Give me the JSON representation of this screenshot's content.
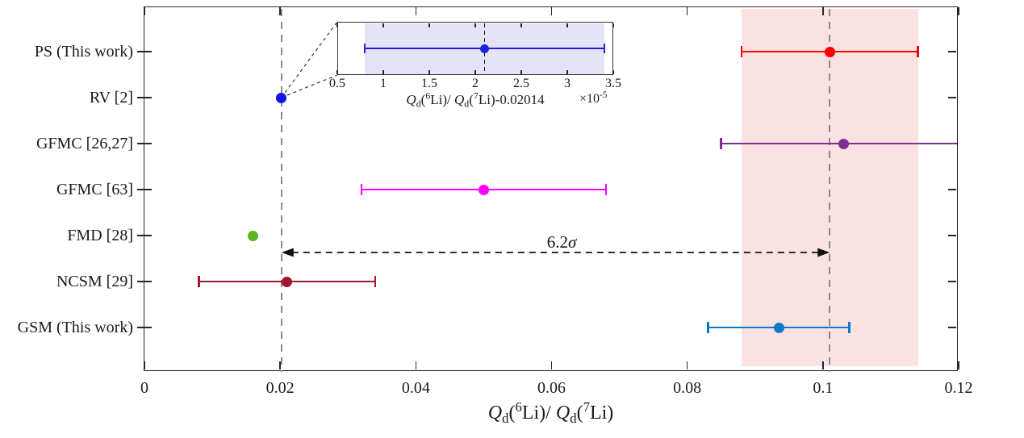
{
  "figure": {
    "background": "#FFFFFF",
    "axis_color": "#262626",
    "text_color": "#1A1A1A"
  },
  "chart_data": {
    "type": "scatter",
    "subtype": "horizontal-errorbar-comparison",
    "title": "",
    "xlabel": "Q_d(6Li)/ Q_d(7Li)",
    "ylabel": "",
    "xlim": [
      0,
      0.12
    ],
    "grid": false,
    "x_ticks": {
      "values": [
        0,
        0.02,
        0.04,
        0.06,
        0.08,
        0.1,
        0.12
      ],
      "labels": [
        "0",
        "0.02",
        "0.04",
        "0.06",
        "0.08",
        "0.1",
        "0.12"
      ]
    },
    "categories": [
      "PS (This work)",
      "RV [2]",
      "GFMC [26,27]",
      "GFMC [63]",
      "FMD [28]",
      "NCSM [29]",
      "GSM (This work)"
    ],
    "series": [
      {
        "label": "PS (This work)",
        "value": 0.101,
        "err_minus": 0.013,
        "err_plus": 0.013,
        "color": "#FF0000"
      },
      {
        "label": "RV [2]",
        "value": 0.02016,
        "err_minus": 1.3e-05,
        "err_plus": 1.3e-05,
        "color": "#1414F0"
      },
      {
        "label": "GFMC [26,27]",
        "value": 0.103,
        "err_minus": 0.018,
        "err_plus": 0.018,
        "color": "#7E2F8E"
      },
      {
        "label": "GFMC [63]",
        "value": 0.05,
        "err_minus": 0.018,
        "err_plus": 0.018,
        "color": "#FF00FF"
      },
      {
        "label": "FMD [28]",
        "value": 0.016,
        "err_minus": 0,
        "err_plus": 0,
        "color": "#5EB41E"
      },
      {
        "label": "NCSM [29]",
        "value": 0.021,
        "err_minus": 0.013,
        "err_plus": 0.013,
        "color": "#A2142F"
      },
      {
        "label": "GSM (This work)",
        "value": 0.0935,
        "err_minus": 0.0104,
        "err_plus": 0.0104,
        "color": "#0E78C8"
      }
    ],
    "shaded_band": {
      "from": 0.088,
      "to": 0.114,
      "color": "#FBE2E2"
    },
    "dashed_lines": [
      {
        "x": 0.0202
      },
      {
        "x": 0.101
      }
    ],
    "dash_color": "#8A8A8A",
    "annotation": {
      "value_text": "6.2",
      "sigma_symbol": "σ",
      "color": "#111111",
      "arrow": {
        "from_x": 0.0202,
        "to_x": 0.101,
        "style": "double-headed dashed"
      }
    },
    "connector_color": "#333333",
    "inset": {
      "xlabel": "Q_d(6Li)/ Q_d(7Li)-0.02014 ×10^-5",
      "xlim": [
        0.5,
        3.5
      ],
      "x_ticks": {
        "values": [
          0.5,
          1,
          1.5,
          2,
          2.5,
          3,
          3.5
        ],
        "labels": [
          "0.5",
          "1",
          "1.5",
          "2",
          "2.5",
          "3",
          "3.5"
        ]
      },
      "scale_label": {
        "base": "×10",
        "exp": "-5"
      },
      "point": {
        "value": 2.1,
        "err_minus": 1.3,
        "err_plus": 1.3,
        "color": "#2020E0"
      },
      "band": {
        "from": 0.8,
        "to": 3.4,
        "color": "#E4E4F8"
      },
      "dashed_line_x": 2.1,
      "xlabel_parts": {
        "q1": "Q",
        "sub1": "d",
        "open1": "(",
        "sup1": "6",
        "li1": "Li",
        "mid": ")/ ",
        "q2": "Q",
        "sub2": "d",
        "open2": "(",
        "sup2": "7",
        "li2": "Li",
        "close2": ")",
        "tail": "-0.02014"
      }
    },
    "xlabel_parts": {
      "q1": "Q",
      "sub1": "d",
      "open1": "(",
      "sup1": "6",
      "li1": "Li",
      "mid": ")/ ",
      "q2": "Q",
      "sub2": "d",
      "open2": "(",
      "sup2": "7",
      "li2": "Li",
      "close2": ")"
    }
  }
}
